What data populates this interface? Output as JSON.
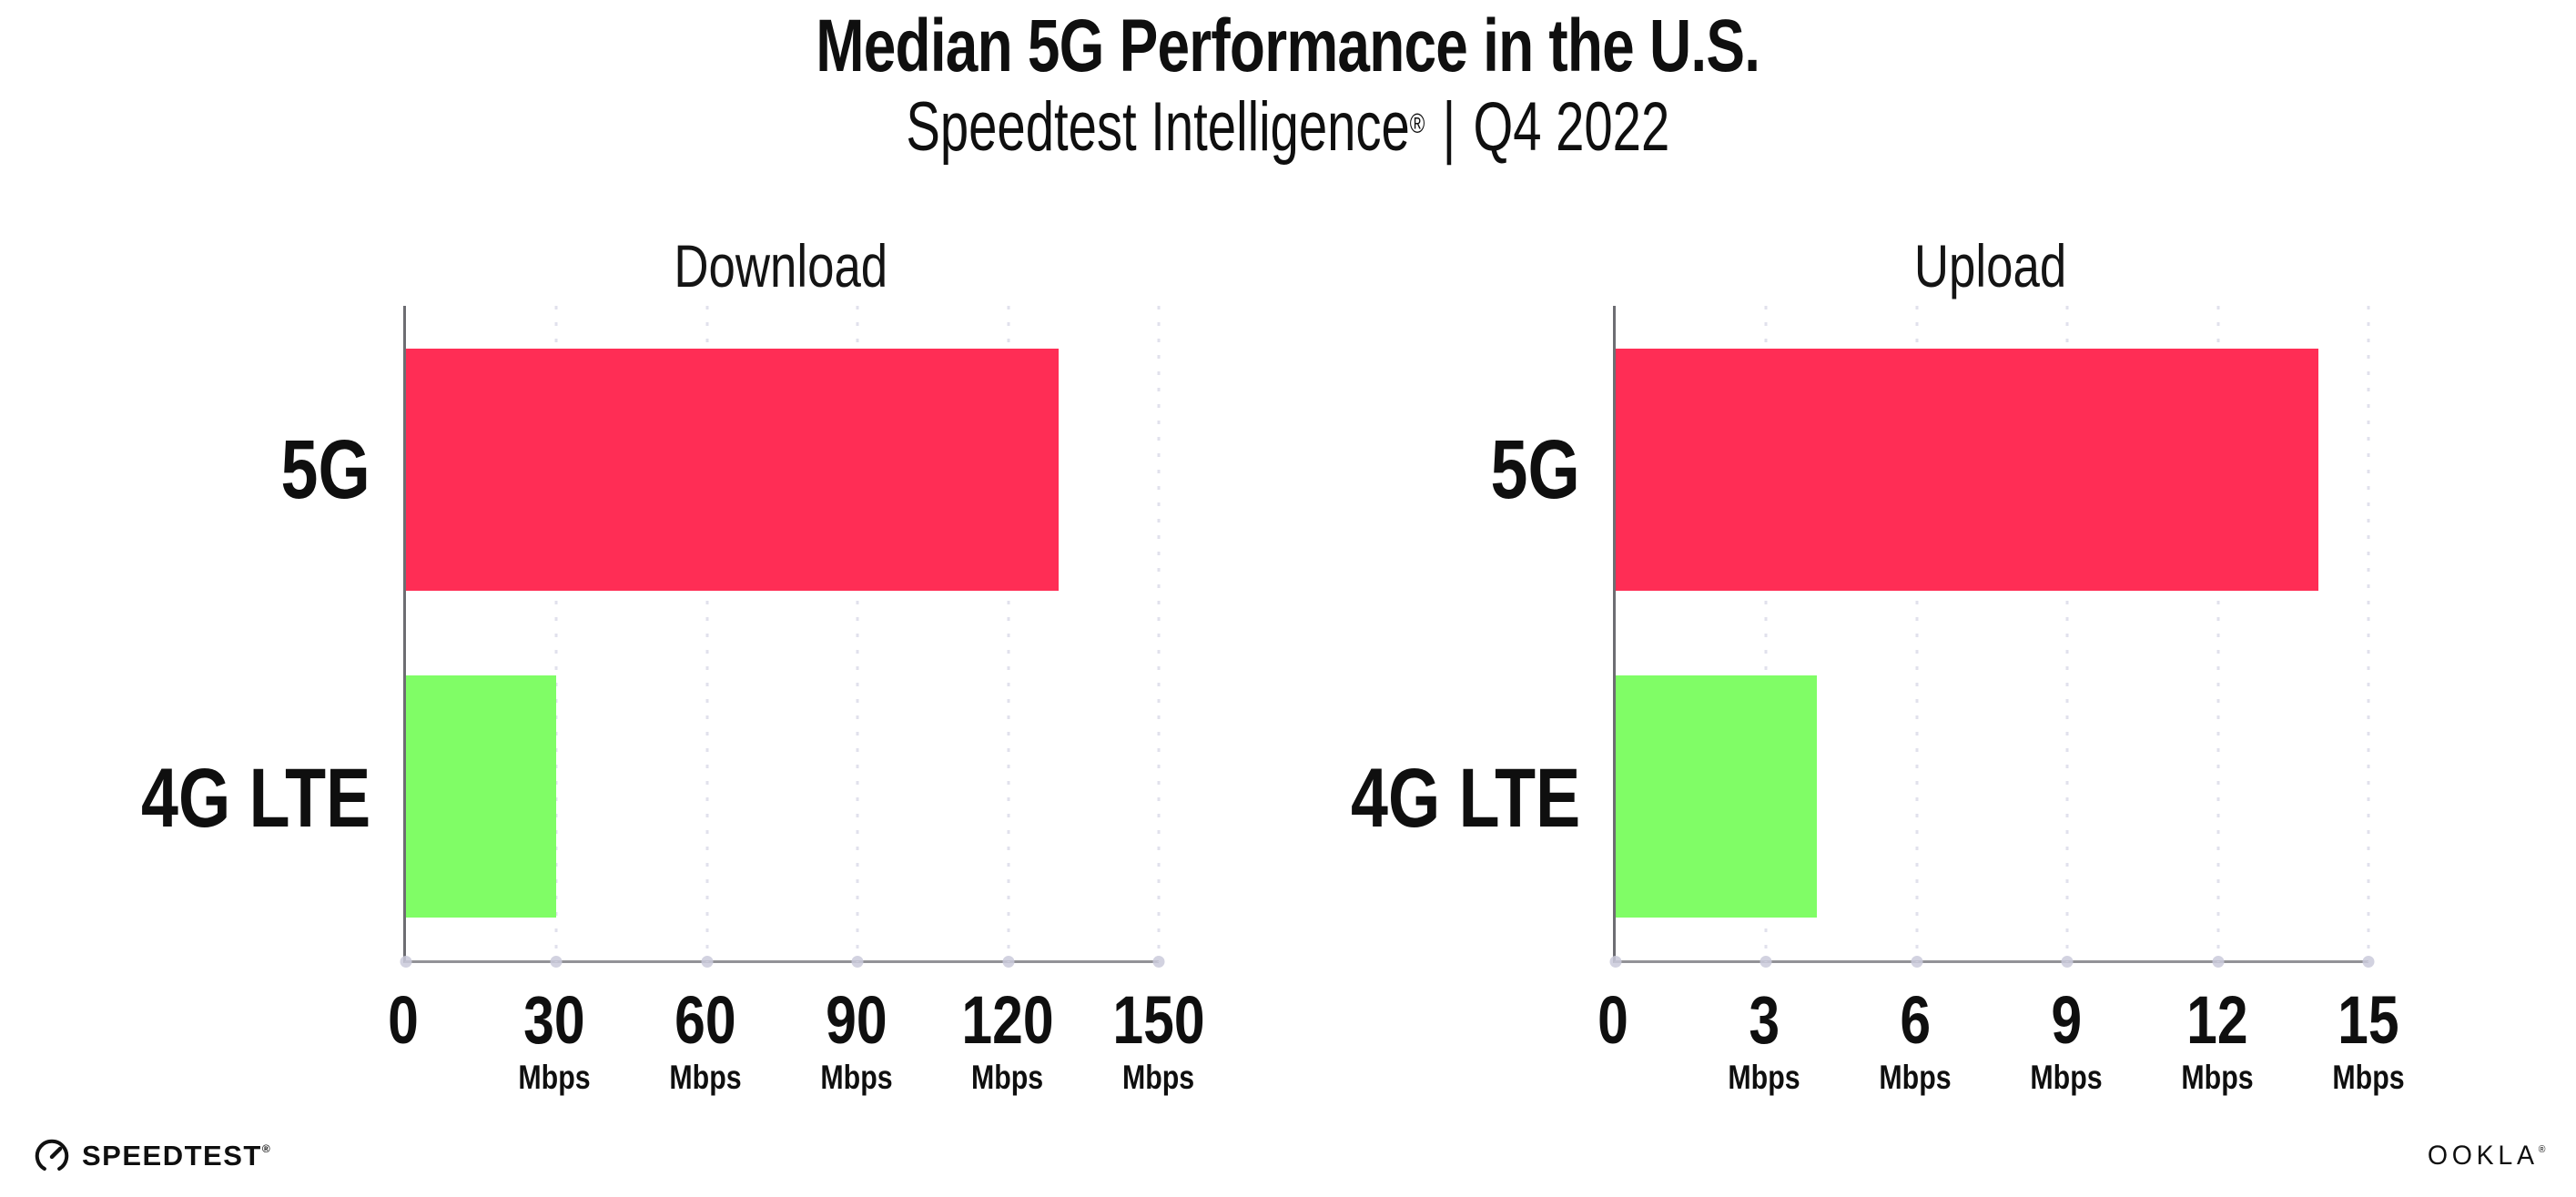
{
  "header": {
    "title": "Median 5G Performance in the U.S.",
    "subtitle_brand": "Speedtest Intelligence",
    "subtitle_reg": "®",
    "subtitle_sep": "|",
    "subtitle_period": "Q4 2022"
  },
  "chart_data": [
    {
      "type": "bar",
      "orientation": "horizontal",
      "title": "Download",
      "categories": [
        "5G",
        "4G LTE"
      ],
      "values": [
        130,
        30
      ],
      "unit": "Mbps",
      "xlim": [
        0,
        150
      ],
      "xticks": [
        0,
        30,
        60,
        90,
        120,
        150
      ],
      "grid": true,
      "legend": false,
      "series_colors": [
        "#FF2D55",
        "#80FD66"
      ]
    },
    {
      "type": "bar",
      "orientation": "horizontal",
      "title": "Upload",
      "categories": [
        "5G",
        "4G LTE"
      ],
      "values": [
        14,
        4
      ],
      "unit": "Mbps",
      "xlim": [
        0,
        15
      ],
      "xticks": [
        0,
        3,
        6,
        9,
        12,
        15
      ],
      "grid": true,
      "legend": false,
      "series_colors": [
        "#FF2D55",
        "#80FD66"
      ]
    }
  ],
  "footer": {
    "speedtest_label": "SPEEDTEST",
    "speedtest_reg": "®",
    "ookla_label": "OOKLA",
    "ookla_reg": "®"
  },
  "colors": {
    "bar_5g": "#FF2D55",
    "bar_4g_lte": "#80FD66",
    "y_axis_line": "#6d6d72",
    "x_axis_line": "#929297",
    "gridline": "#e1e1ec",
    "tick_dot": "#cacada",
    "text": "#0f0f0f"
  }
}
